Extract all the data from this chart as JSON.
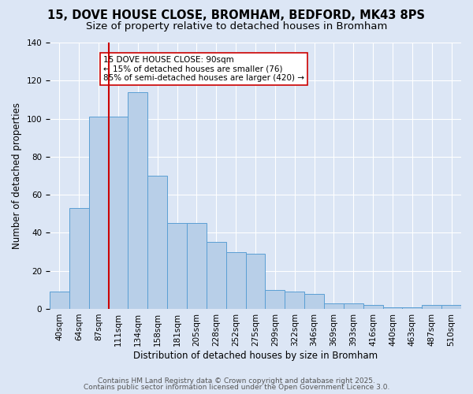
{
  "title_line1": "15, DOVE HOUSE CLOSE, BROMHAM, BEDFORD, MK43 8PS",
  "title_line2": "Size of property relative to detached houses in Bromham",
  "xlabel": "Distribution of detached houses by size in Bromham",
  "ylabel": "Number of detached properties",
  "categories": [
    "40sqm",
    "64sqm",
    "87sqm",
    "111sqm",
    "134sqm",
    "158sqm",
    "181sqm",
    "205sqm",
    "228sqm",
    "252sqm",
    "275sqm",
    "299sqm",
    "322sqm",
    "346sqm",
    "369sqm",
    "393sqm",
    "416sqm",
    "440sqm",
    "463sqm",
    "487sqm",
    "510sqm"
  ],
  "values": [
    9,
    53,
    101,
    101,
    114,
    70,
    45,
    45,
    35,
    30,
    29,
    10,
    9,
    8,
    3,
    3,
    2,
    1,
    1,
    2,
    2
  ],
  "bar_color": "#b8cfe8",
  "bar_edge_color": "#5a9fd4",
  "background_color": "#dce6f5",
  "grid_color": "#ffffff",
  "vline_color": "#cc0000",
  "annotation_text_line1": "15 DOVE HOUSE CLOSE: 90sqm",
  "annotation_text_line2": "← 15% of detached houses are smaller (76)",
  "annotation_text_line3": "85% of semi-detached houses are larger (420) →",
  "annotation_box_color": "#ffffff",
  "annotation_border_color": "#cc0000",
  "footer_line1": "Contains HM Land Registry data © Crown copyright and database right 2025.",
  "footer_line2": "Contains public sector information licensed under the Open Government Licence 3.0.",
  "ylim": [
    0,
    140
  ],
  "yticks": [
    0,
    20,
    40,
    60,
    80,
    100,
    120,
    140
  ],
  "title_fontsize": 10.5,
  "subtitle_fontsize": 9.5,
  "axis_label_fontsize": 8.5,
  "tick_fontsize": 7.5,
  "footer_fontsize": 6.5,
  "annot_fontsize": 7.5
}
